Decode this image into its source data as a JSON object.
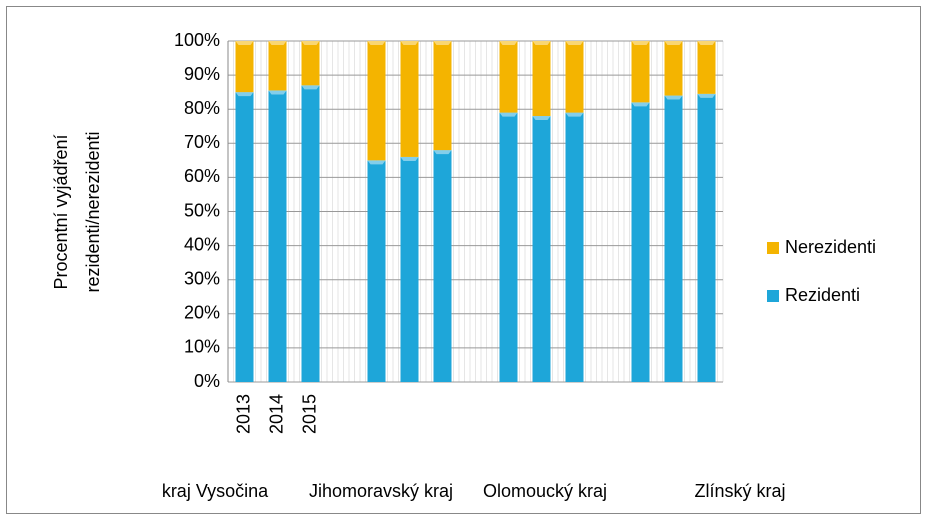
{
  "chart_data": {
    "type": "stacked_bar",
    "ylabel": [
      "Procentní vyjádření",
      "rezidenti/nerezidenti"
    ],
    "categories": [
      "2013",
      "2014",
      "2015",
      null,
      null,
      null,
      null,
      null,
      null,
      null,
      null,
      null
    ],
    "groups": [
      "kraj Vysočina",
      "Jihomoravský kraj",
      "Olomoucký kraj",
      "Zlínský kraj"
    ],
    "series": [
      {
        "name": "Rezidenti",
        "color": "#1ea6d9",
        "values": [
          85,
          85.5,
          87,
          65,
          66,
          68,
          79,
          78,
          79,
          82,
          84,
          84.5
        ]
      },
      {
        "name": "Nerezidenti",
        "color": "#f4b400",
        "values": [
          15,
          14.5,
          13,
          35,
          34,
          32,
          21,
          22,
          21,
          18,
          16,
          15.5
        ]
      }
    ],
    "ylim": [
      0,
      100
    ],
    "yticks": [
      {
        "value": 0,
        "label": "0%"
      },
      {
        "value": 10,
        "label": "10%"
      },
      {
        "value": 20,
        "label": "20%"
      },
      {
        "value": 30,
        "label": "30%"
      },
      {
        "value": 40,
        "label": "40%"
      },
      {
        "value": 50,
        "label": "50%"
      },
      {
        "value": 60,
        "label": "60%"
      },
      {
        "value": 70,
        "label": "70%"
      },
      {
        "value": 80,
        "label": "80%"
      },
      {
        "value": 90,
        "label": "90%"
      },
      {
        "value": 100,
        "label": "100%"
      }
    ],
    "grid": true,
    "legend": "right"
  }
}
